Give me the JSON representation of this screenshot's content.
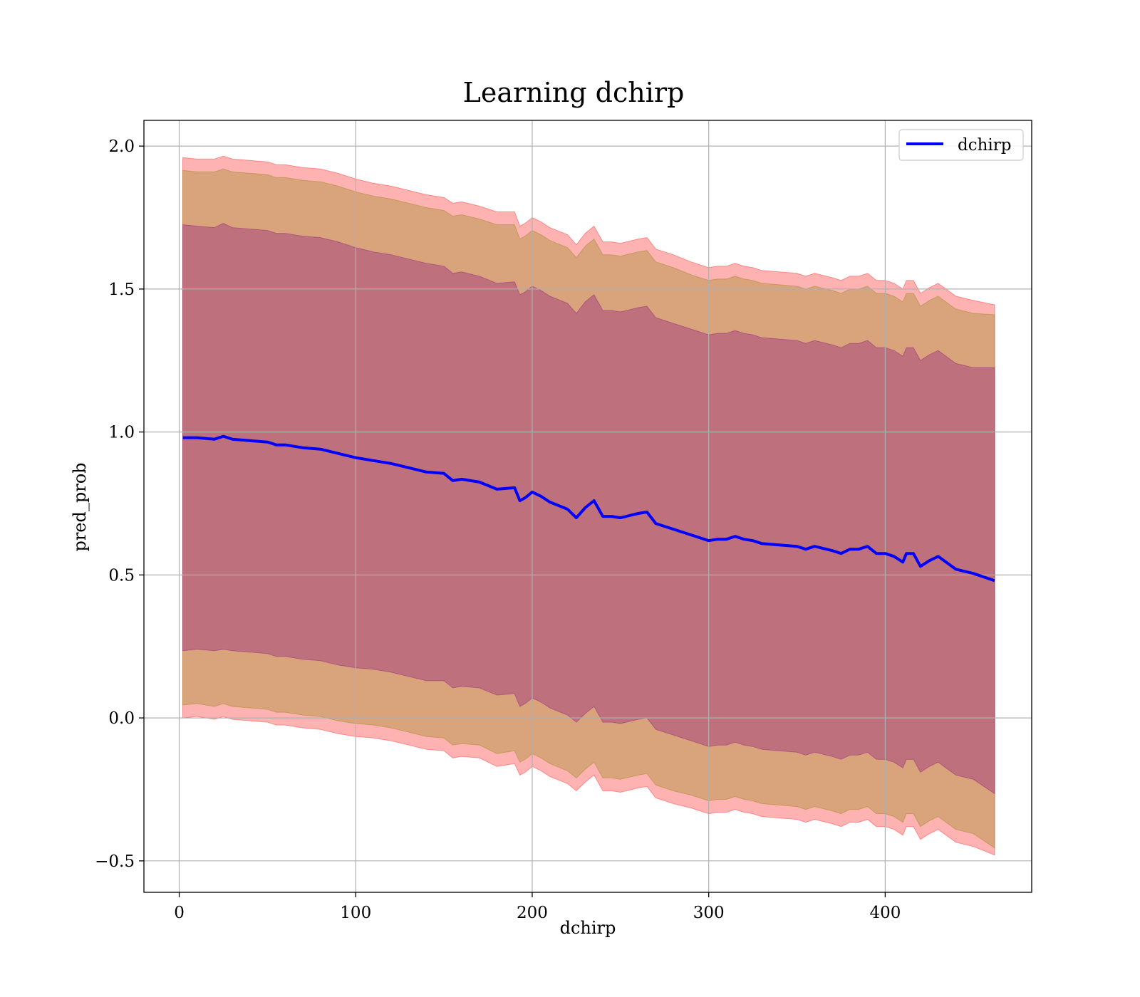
{
  "chart_data": {
    "type": "line",
    "title": "Learning dchirp",
    "xlabel": "dchirp",
    "ylabel": "pred_prob",
    "xlim": [
      -20,
      483
    ],
    "ylim": [
      -0.61,
      2.09
    ],
    "grid": true,
    "legend_placement": "top-right",
    "xticks": [
      0,
      100,
      200,
      300,
      400
    ],
    "yticks": [
      -0.5,
      0.0,
      0.5,
      1.0,
      1.5,
      2.0
    ],
    "xtick_labels": [
      "0",
      "100",
      "200",
      "300",
      "400"
    ],
    "ytick_labels": [
      "−0.5",
      "0.0",
      "0.5",
      "1.0",
      "1.5",
      "2.0"
    ],
    "series": [
      {
        "name": "dchirp",
        "color": "#0000ff",
        "x": [
          2,
          10,
          20,
          25,
          30,
          40,
          50,
          55,
          60,
          70,
          80,
          90,
          100,
          110,
          120,
          130,
          140,
          150,
          155,
          160,
          170,
          180,
          190,
          193,
          196,
          200,
          205,
          210,
          220,
          225,
          230,
          235,
          240,
          245,
          250,
          260,
          265,
          270,
          280,
          290,
          300,
          305,
          310,
          315,
          320,
          325,
          330,
          340,
          350,
          355,
          360,
          370,
          375,
          380,
          385,
          390,
          395,
          400,
          405,
          410,
          412,
          416,
          420,
          425,
          430,
          440,
          450,
          462
        ],
        "y": [
          0.98,
          0.98,
          0.975,
          0.985,
          0.975,
          0.97,
          0.965,
          0.955,
          0.955,
          0.945,
          0.94,
          0.925,
          0.91,
          0.9,
          0.89,
          0.875,
          0.86,
          0.855,
          0.83,
          0.835,
          0.825,
          0.8,
          0.805,
          0.76,
          0.77,
          0.79,
          0.775,
          0.755,
          0.73,
          0.7,
          0.735,
          0.76,
          0.705,
          0.705,
          0.7,
          0.715,
          0.72,
          0.68,
          0.66,
          0.64,
          0.62,
          0.625,
          0.625,
          0.635,
          0.625,
          0.62,
          0.61,
          0.605,
          0.6,
          0.59,
          0.6,
          0.585,
          0.575,
          0.59,
          0.59,
          0.6,
          0.575,
          0.575,
          0.565,
          0.545,
          0.575,
          0.575,
          0.53,
          0.55,
          0.565,
          0.52,
          0.505,
          0.48
        ]
      }
    ],
    "bands": [
      {
        "color": "#ff0000",
        "opacity": 0.3,
        "x": [
          2,
          10,
          20,
          25,
          30,
          40,
          50,
          55,
          60,
          70,
          80,
          90,
          100,
          110,
          120,
          130,
          140,
          150,
          155,
          160,
          170,
          180,
          190,
          193,
          196,
          200,
          205,
          210,
          220,
          225,
          230,
          235,
          240,
          245,
          250,
          260,
          265,
          270,
          280,
          290,
          300,
          305,
          310,
          315,
          320,
          325,
          330,
          340,
          350,
          355,
          360,
          370,
          375,
          380,
          385,
          390,
          395,
          400,
          405,
          410,
          412,
          416,
          420,
          425,
          430,
          440,
          450,
          462
        ],
        "upper": [
          1.96,
          1.955,
          1.955,
          1.965,
          1.955,
          1.95,
          1.945,
          1.935,
          1.935,
          1.925,
          1.92,
          1.905,
          1.885,
          1.87,
          1.86,
          1.845,
          1.83,
          1.82,
          1.8,
          1.805,
          1.79,
          1.77,
          1.77,
          1.72,
          1.73,
          1.75,
          1.735,
          1.715,
          1.69,
          1.655,
          1.695,
          1.72,
          1.665,
          1.665,
          1.66,
          1.675,
          1.68,
          1.64,
          1.62,
          1.595,
          1.575,
          1.58,
          1.58,
          1.59,
          1.58,
          1.575,
          1.565,
          1.56,
          1.555,
          1.545,
          1.555,
          1.54,
          1.53,
          1.545,
          1.545,
          1.555,
          1.53,
          1.53,
          1.52,
          1.5,
          1.53,
          1.53,
          1.485,
          1.505,
          1.52,
          1.475,
          1.46,
          1.445
        ],
        "lower": [
          0.0,
          0.005,
          -0.005,
          0.005,
          -0.005,
          -0.01,
          -0.015,
          -0.025,
          -0.025,
          -0.035,
          -0.04,
          -0.055,
          -0.065,
          -0.07,
          -0.08,
          -0.095,
          -0.11,
          -0.115,
          -0.14,
          -0.135,
          -0.14,
          -0.17,
          -0.16,
          -0.2,
          -0.19,
          -0.17,
          -0.185,
          -0.205,
          -0.23,
          -0.255,
          -0.225,
          -0.2,
          -0.255,
          -0.255,
          -0.26,
          -0.245,
          -0.24,
          -0.28,
          -0.3,
          -0.315,
          -0.335,
          -0.33,
          -0.33,
          -0.32,
          -0.33,
          -0.335,
          -0.345,
          -0.35,
          -0.355,
          -0.365,
          -0.355,
          -0.37,
          -0.38,
          -0.365,
          -0.365,
          -0.355,
          -0.38,
          -0.38,
          -0.39,
          -0.41,
          -0.38,
          -0.38,
          -0.425,
          -0.405,
          -0.39,
          -0.435,
          -0.45,
          -0.48
        ]
      },
      {
        "color": "#808000",
        "opacity": 0.3,
        "x": [
          2,
          10,
          20,
          25,
          30,
          40,
          50,
          55,
          60,
          70,
          80,
          90,
          100,
          110,
          120,
          130,
          140,
          150,
          155,
          160,
          170,
          180,
          190,
          193,
          196,
          200,
          205,
          210,
          220,
          225,
          230,
          235,
          240,
          245,
          250,
          260,
          265,
          270,
          280,
          290,
          300,
          305,
          310,
          315,
          320,
          325,
          330,
          340,
          350,
          355,
          360,
          370,
          375,
          380,
          385,
          390,
          395,
          400,
          405,
          410,
          412,
          416,
          420,
          425,
          430,
          440,
          450,
          462
        ],
        "upper": [
          1.915,
          1.91,
          1.91,
          1.92,
          1.91,
          1.905,
          1.9,
          1.89,
          1.89,
          1.88,
          1.875,
          1.86,
          1.84,
          1.825,
          1.815,
          1.8,
          1.785,
          1.775,
          1.755,
          1.76,
          1.745,
          1.725,
          1.725,
          1.675,
          1.685,
          1.705,
          1.69,
          1.67,
          1.645,
          1.61,
          1.65,
          1.675,
          1.62,
          1.62,
          1.615,
          1.63,
          1.635,
          1.595,
          1.575,
          1.55,
          1.53,
          1.535,
          1.535,
          1.545,
          1.535,
          1.53,
          1.52,
          1.515,
          1.51,
          1.5,
          1.51,
          1.495,
          1.485,
          1.5,
          1.5,
          1.51,
          1.485,
          1.485,
          1.475,
          1.455,
          1.485,
          1.485,
          1.44,
          1.46,
          1.475,
          1.43,
          1.415,
          1.41
        ],
        "lower": [
          0.045,
          0.05,
          0.04,
          0.05,
          0.04,
          0.035,
          0.03,
          0.02,
          0.02,
          0.01,
          0.005,
          -0.01,
          -0.02,
          -0.025,
          -0.035,
          -0.05,
          -0.065,
          -0.07,
          -0.095,
          -0.09,
          -0.095,
          -0.125,
          -0.115,
          -0.155,
          -0.145,
          -0.125,
          -0.14,
          -0.16,
          -0.185,
          -0.21,
          -0.18,
          -0.155,
          -0.21,
          -0.21,
          -0.215,
          -0.2,
          -0.195,
          -0.235,
          -0.255,
          -0.27,
          -0.29,
          -0.285,
          -0.285,
          -0.275,
          -0.285,
          -0.29,
          -0.3,
          -0.305,
          -0.31,
          -0.32,
          -0.31,
          -0.325,
          -0.335,
          -0.32,
          -0.32,
          -0.31,
          -0.335,
          -0.335,
          -0.345,
          -0.365,
          -0.335,
          -0.335,
          -0.38,
          -0.36,
          -0.345,
          -0.39,
          -0.405,
          -0.455
        ]
      },
      {
        "color": "#800080",
        "opacity": 0.3,
        "x": [
          2,
          10,
          20,
          25,
          30,
          40,
          50,
          55,
          60,
          70,
          80,
          90,
          100,
          110,
          120,
          130,
          140,
          150,
          155,
          160,
          170,
          180,
          190,
          193,
          196,
          200,
          205,
          210,
          220,
          225,
          230,
          235,
          240,
          245,
          250,
          260,
          265,
          270,
          280,
          290,
          300,
          305,
          310,
          315,
          320,
          325,
          330,
          340,
          350,
          355,
          360,
          370,
          375,
          380,
          385,
          390,
          395,
          400,
          405,
          410,
          412,
          416,
          420,
          425,
          430,
          440,
          450,
          462
        ],
        "upper": [
          1.725,
          1.72,
          1.715,
          1.73,
          1.715,
          1.71,
          1.705,
          1.695,
          1.695,
          1.685,
          1.68,
          1.665,
          1.645,
          1.63,
          1.62,
          1.605,
          1.59,
          1.58,
          1.555,
          1.56,
          1.545,
          1.52,
          1.525,
          1.48,
          1.49,
          1.51,
          1.495,
          1.475,
          1.45,
          1.415,
          1.455,
          1.48,
          1.425,
          1.425,
          1.42,
          1.435,
          1.44,
          1.4,
          1.38,
          1.36,
          1.34,
          1.345,
          1.345,
          1.355,
          1.345,
          1.34,
          1.33,
          1.325,
          1.32,
          1.31,
          1.32,
          1.305,
          1.295,
          1.31,
          1.31,
          1.32,
          1.295,
          1.295,
          1.285,
          1.265,
          1.295,
          1.295,
          1.25,
          1.27,
          1.285,
          1.24,
          1.225,
          1.225
        ],
        "lower": [
          0.235,
          0.24,
          0.235,
          0.24,
          0.235,
          0.23,
          0.225,
          0.215,
          0.215,
          0.205,
          0.2,
          0.185,
          0.175,
          0.17,
          0.16,
          0.145,
          0.13,
          0.13,
          0.105,
          0.11,
          0.105,
          0.08,
          0.085,
          0.04,
          0.05,
          0.07,
          0.055,
          0.035,
          0.01,
          -0.015,
          0.015,
          0.04,
          -0.015,
          -0.015,
          -0.02,
          -0.005,
          0.0,
          -0.04,
          -0.06,
          -0.08,
          -0.1,
          -0.095,
          -0.095,
          -0.085,
          -0.095,
          -0.1,
          -0.11,
          -0.115,
          -0.12,
          -0.13,
          -0.12,
          -0.135,
          -0.145,
          -0.13,
          -0.13,
          -0.12,
          -0.145,
          -0.145,
          -0.155,
          -0.175,
          -0.145,
          -0.145,
          -0.19,
          -0.17,
          -0.155,
          -0.2,
          -0.215,
          -0.265
        ]
      }
    ]
  }
}
